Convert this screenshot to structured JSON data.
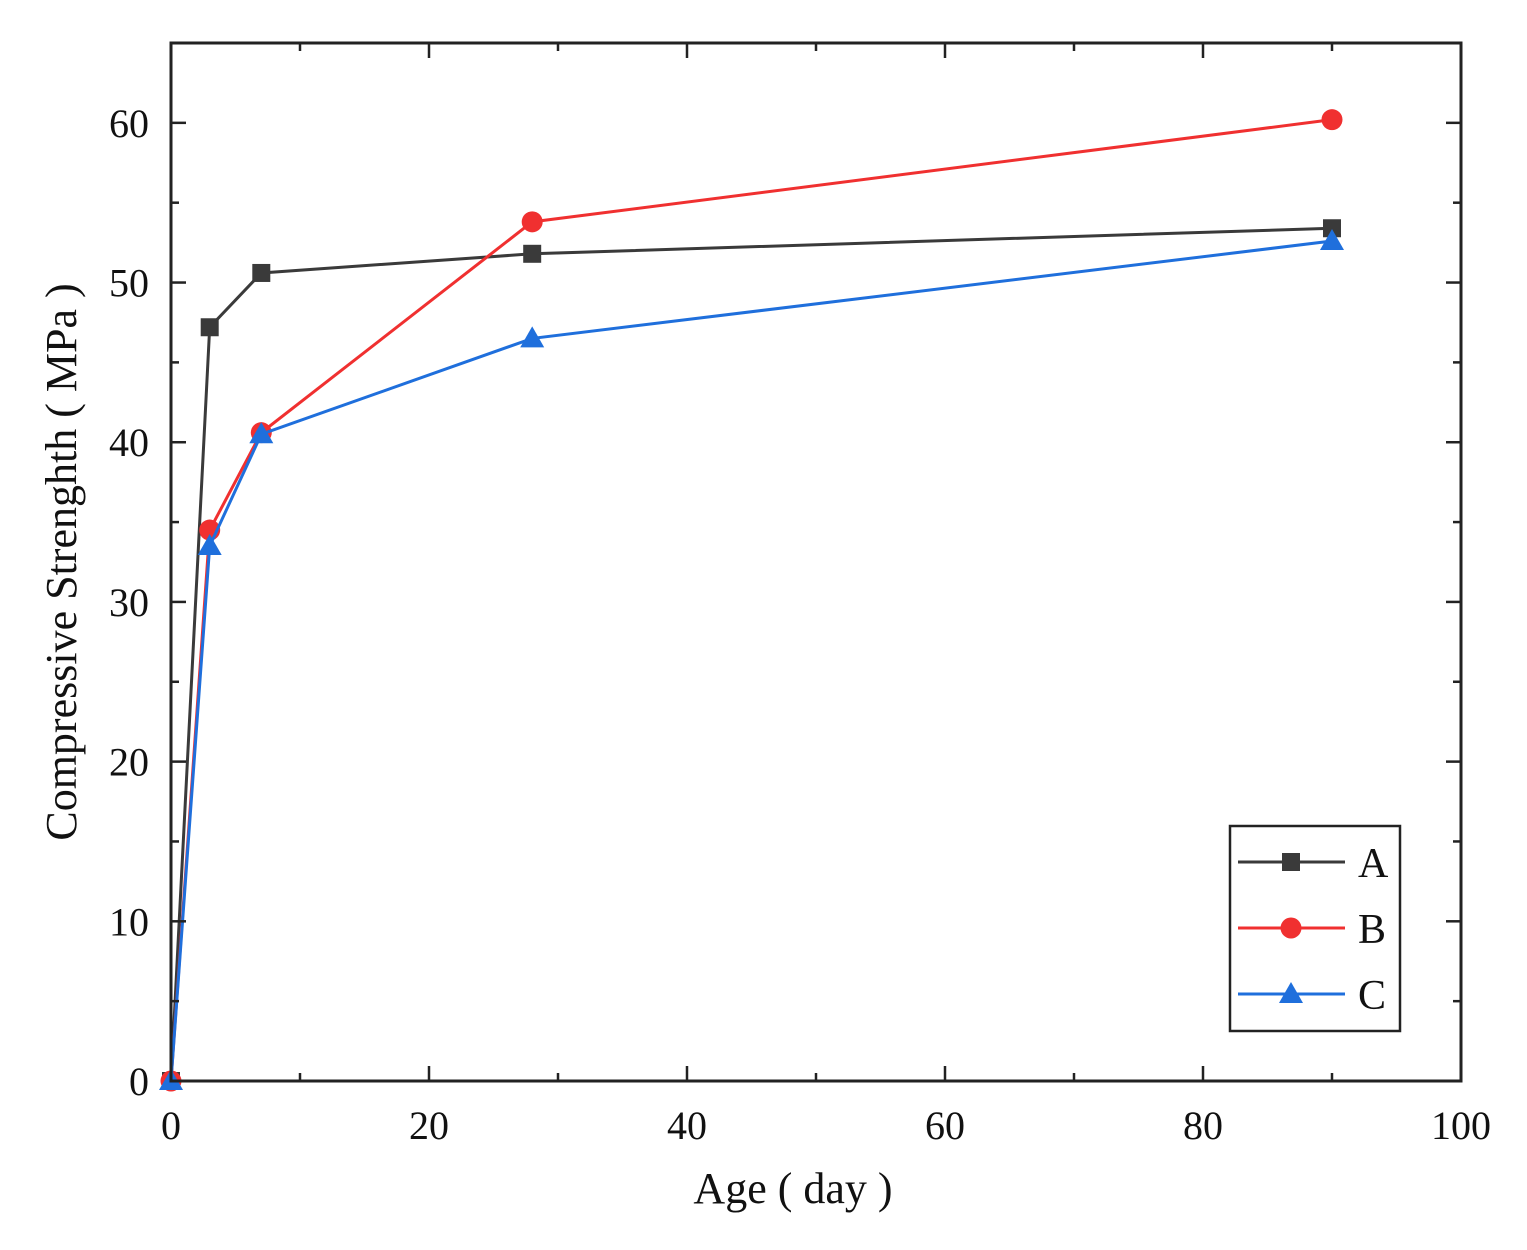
{
  "chart_data": {
    "type": "line",
    "title": "",
    "xlabel": "Age ( day )",
    "ylabel": "Compressive Strenghth ( MPa )",
    "xlim": [
      0,
      100
    ],
    "ylim": [
      0,
      65
    ],
    "xticks": [
      0,
      20,
      40,
      60,
      80,
      100
    ],
    "yticks": [
      0,
      10,
      20,
      30,
      40,
      50,
      60
    ],
    "xtick_labels": [
      "0",
      "20",
      "40",
      "60",
      "80",
      "100"
    ],
    "ytick_labels": [
      "0",
      "10",
      "20",
      "30",
      "40",
      "50",
      "60"
    ],
    "grid": false,
    "legend_position": "bottom-right",
    "series": [
      {
        "name": "A",
        "color": "#3a3a3a",
        "marker": "square",
        "x": [
          0,
          3,
          7,
          28,
          90
        ],
        "y": [
          0,
          47.2,
          50.6,
          51.8,
          53.4
        ]
      },
      {
        "name": "B",
        "color": "#f03030",
        "marker": "circle",
        "x": [
          0,
          3,
          7,
          28,
          90
        ],
        "y": [
          0,
          34.5,
          40.6,
          53.8,
          60.2
        ]
      },
      {
        "name": "C",
        "color": "#1f6fdc",
        "marker": "triangle",
        "x": [
          0,
          3,
          7,
          28,
          90
        ],
        "y": [
          0,
          33.5,
          40.5,
          46.5,
          52.6
        ]
      }
    ]
  }
}
